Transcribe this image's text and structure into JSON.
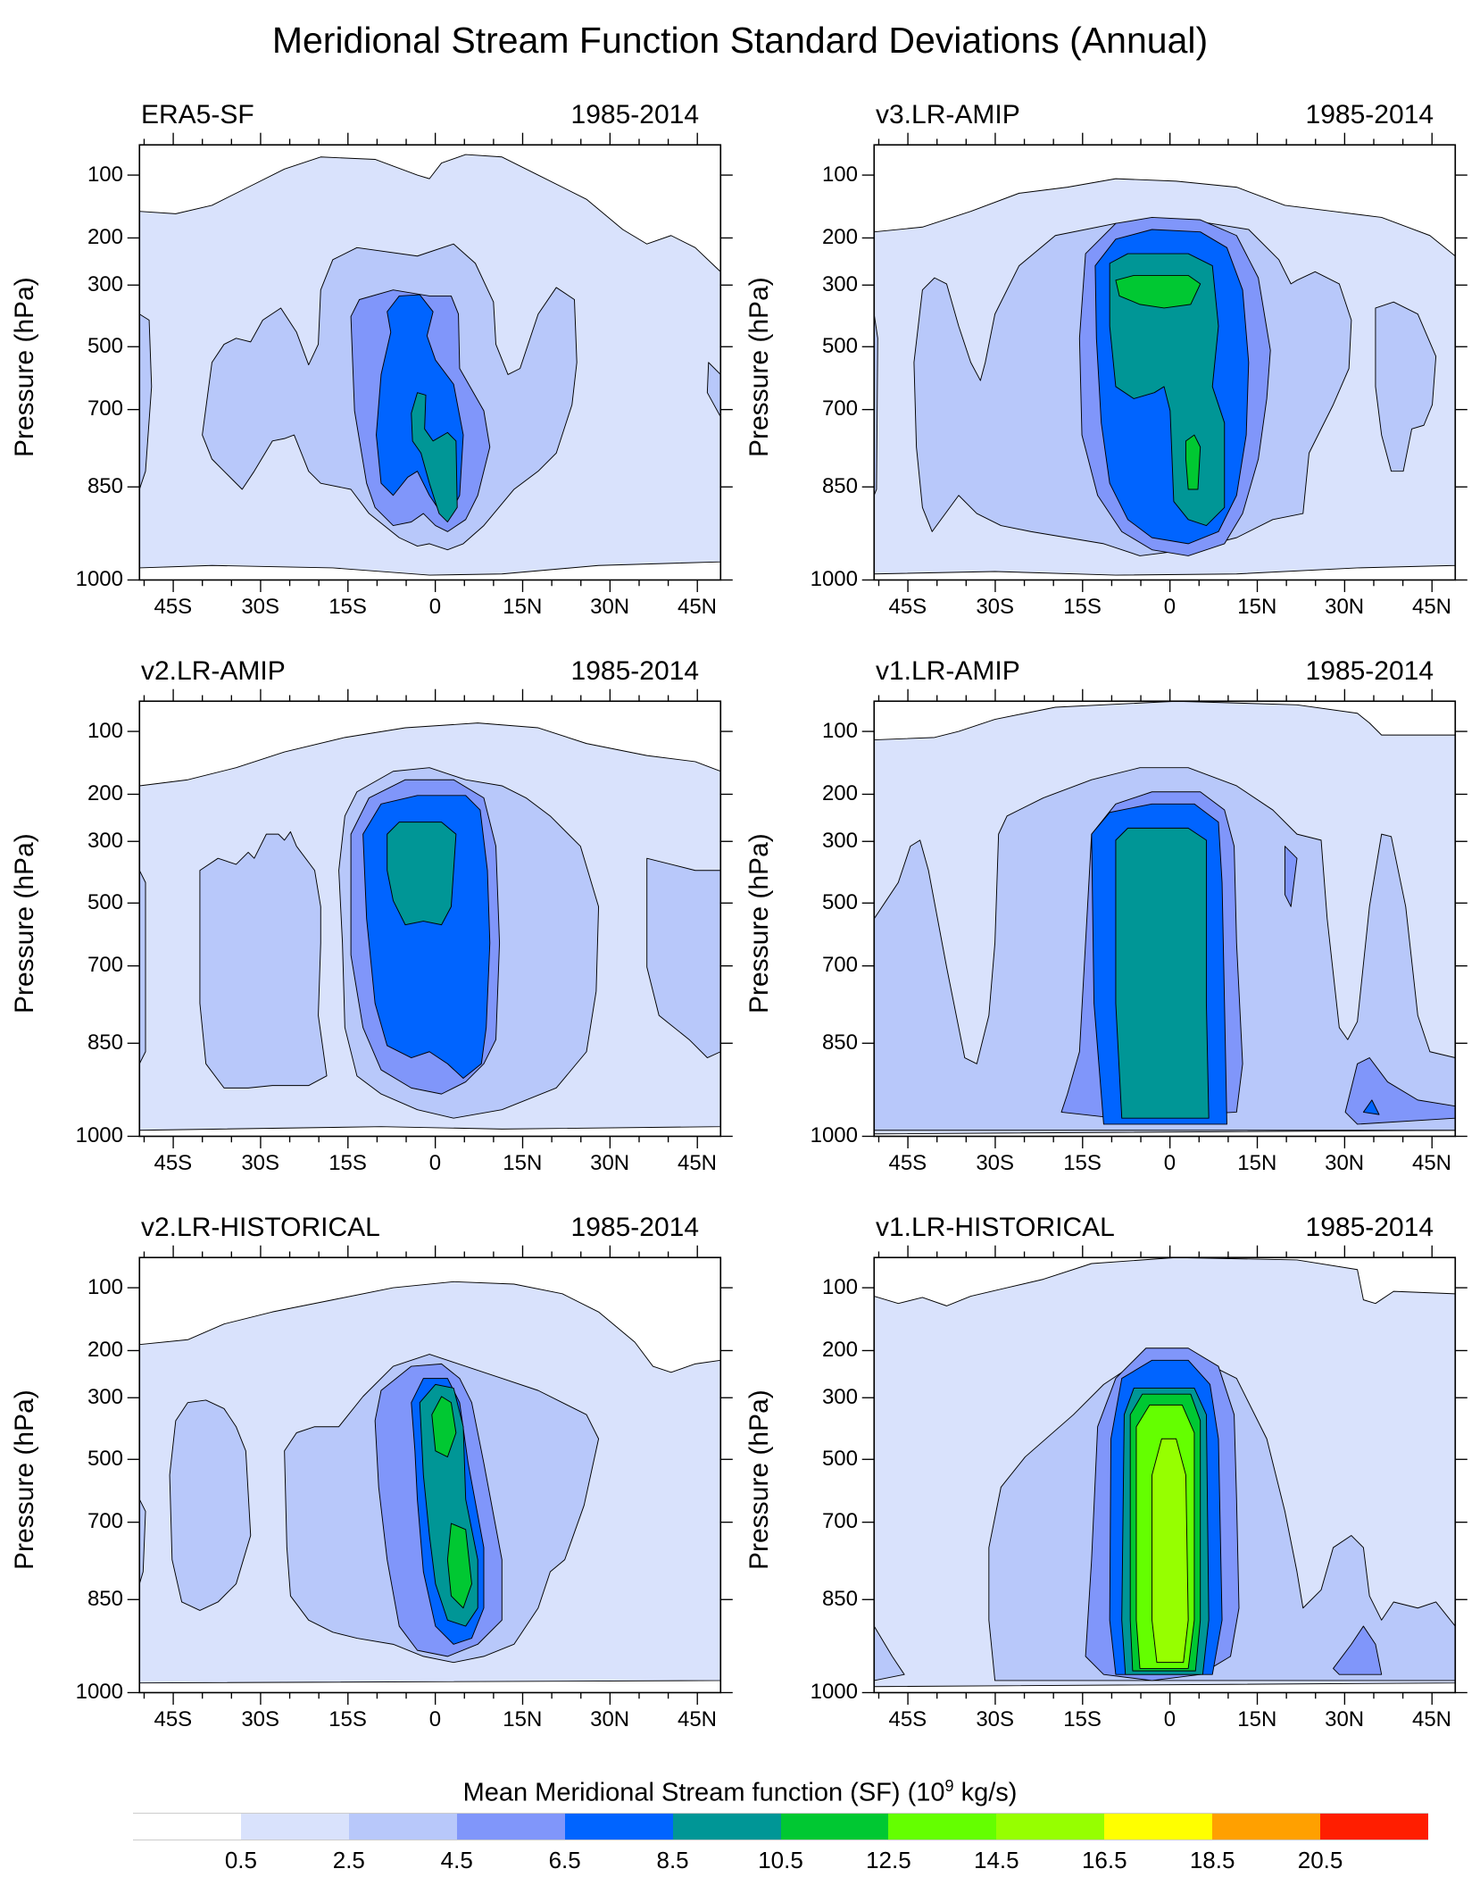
{
  "chart_data": {
    "type": "heatmap",
    "subtype": "filled-contour",
    "title": "Meridional Stream Function Standard Deviations (Annual)",
    "ylabel": "Pressure (hPa)",
    "xlabel": "",
    "x_range": [
      -51,
      49
    ],
    "x_ticks": [
      {
        "value": -45,
        "label": "45S"
      },
      {
        "value": -30,
        "label": "30S"
      },
      {
        "value": -15,
        "label": "15S"
      },
      {
        "value": 0,
        "label": "0"
      },
      {
        "value": 15,
        "label": "15N"
      },
      {
        "value": 30,
        "label": "30N"
      },
      {
        "value": 45,
        "label": "45N"
      }
    ],
    "y_ticks": [
      "100",
      "200",
      "300",
      "500",
      "700",
      "850",
      "1000"
    ],
    "panels": [
      {
        "name": "ERA5-SF",
        "period": "1985-2014",
        "max_level": 5
      },
      {
        "name": "v3.LR-AMIP",
        "period": "1985-2014",
        "max_level": 6
      },
      {
        "name": "v2.LR-AMIP",
        "period": "1985-2014",
        "max_level": 5
      },
      {
        "name": "v1.LR-AMIP",
        "period": "1985-2014",
        "max_level": 5
      },
      {
        "name": "v2.LR-HISTORICAL",
        "period": "1985-2014",
        "max_level": 6
      },
      {
        "name": "v1.LR-HISTORICAL",
        "period": "1985-2014",
        "max_level": 8
      }
    ],
    "colorbar": {
      "title_pre": "Mean Meridional Stream function (SF) (10",
      "title_sup": "9",
      "title_post": " kg/s)",
      "levels": [
        "0.5",
        "2.5",
        "4.5",
        "6.5",
        "8.5",
        "10.5",
        "12.5",
        "14.5",
        "16.5",
        "18.5",
        "20.5"
      ],
      "colors": [
        "#ffffff",
        "#d9e2fc",
        "#b8c8fa",
        "#8096fa",
        "#0064ff",
        "#009696",
        "#00c832",
        "#64ff00",
        "#96ff00",
        "#ffff00",
        "#ffa000",
        "#ff1e00"
      ]
    }
  }
}
